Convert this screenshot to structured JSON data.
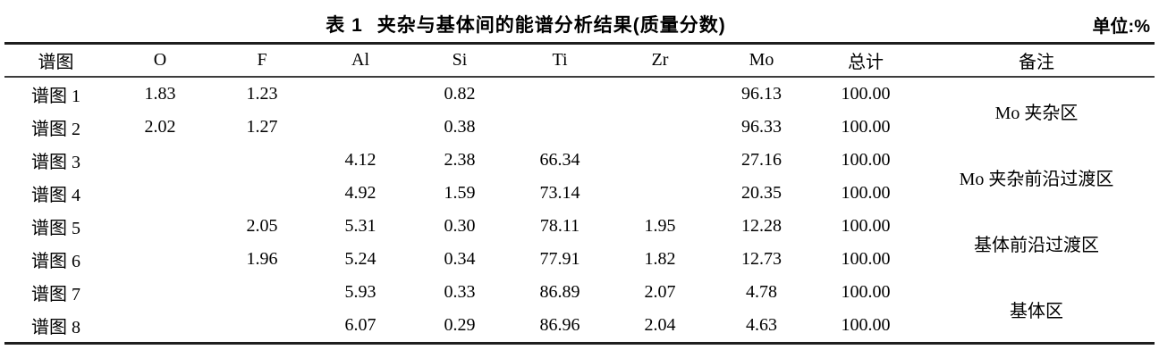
{
  "header": {
    "table_label": "表 1",
    "title": "夹杂与基体间的能谱分析结果(质量分数)",
    "unit": "单位:%"
  },
  "table": {
    "columns": [
      "谱图",
      "O",
      "F",
      "Al",
      "Si",
      "Ti",
      "Zr",
      "Mo",
      "总计",
      "备注"
    ],
    "rows": [
      [
        "谱图 1",
        "1.83",
        "1.23",
        "",
        "0.82",
        "",
        "",
        "96.13",
        "100.00"
      ],
      [
        "谱图 2",
        "2.02",
        "1.27",
        "",
        "0.38",
        "",
        "",
        "96.33",
        "100.00"
      ],
      [
        "谱图 3",
        "",
        "",
        "4.12",
        "2.38",
        "66.34",
        "",
        "27.16",
        "100.00"
      ],
      [
        "谱图 4",
        "",
        "",
        "4.92",
        "1.59",
        "73.14",
        "",
        "20.35",
        "100.00"
      ],
      [
        "谱图 5",
        "",
        "2.05",
        "5.31",
        "0.30",
        "78.11",
        "1.95",
        "12.28",
        "100.00"
      ],
      [
        "谱图 6",
        "",
        "1.96",
        "5.24",
        "0.34",
        "77.91",
        "1.82",
        "12.73",
        "100.00"
      ],
      [
        "谱图 7",
        "",
        "",
        "5.93",
        "0.33",
        "86.89",
        "2.07",
        "4.78",
        "100.00"
      ],
      [
        "谱图 8",
        "",
        "",
        "6.07",
        "0.29",
        "86.96",
        "2.04",
        "4.63",
        "100.00"
      ]
    ],
    "remarks": [
      "Mo 夹杂区",
      "Mo 夹杂前沿过渡区",
      "基体前沿过渡区",
      "基体区"
    ]
  }
}
